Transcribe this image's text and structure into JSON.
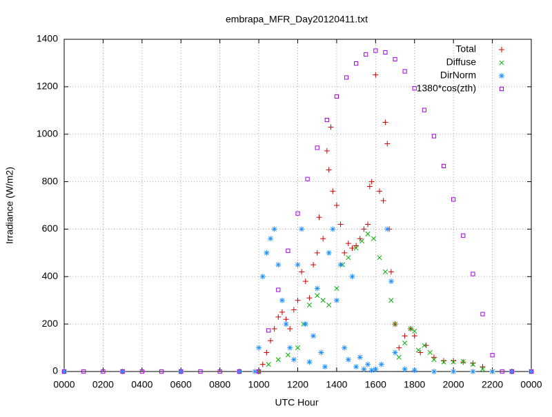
{
  "chart_data": {
    "type": "scatter",
    "title": "embrapa_MFR_Day20120411.txt",
    "x_label": "UTC Hour",
    "y_label": "Irradiance (W/m2)",
    "xlim": [
      0,
      24
    ],
    "ylim": [
      0,
      1400
    ],
    "xticks": [
      {
        "value": 0,
        "label": "0000"
      },
      {
        "value": 2,
        "label": "0200"
      },
      {
        "value": 4,
        "label": "0400"
      },
      {
        "value": 6,
        "label": "0600"
      },
      {
        "value": 8,
        "label": "0800"
      },
      {
        "value": 10,
        "label": "1000"
      },
      {
        "value": 12,
        "label": "1200"
      },
      {
        "value": 14,
        "label": "1400"
      },
      {
        "value": 16,
        "label": "1600"
      },
      {
        "value": 18,
        "label": "1800"
      },
      {
        "value": 20,
        "label": "2000"
      },
      {
        "value": 22,
        "label": "2200"
      },
      {
        "value": 24,
        "label": "0000"
      }
    ],
    "yticks": [
      0,
      200,
      400,
      600,
      800,
      1000,
      1200,
      1400
    ],
    "grid": true,
    "legend": "top right",
    "series": [
      {
        "name": "Total",
        "color": "#cc0000",
        "marker": "plus",
        "x": [
          0,
          3,
          6,
          9,
          10,
          10.2,
          10.4,
          10.6,
          10.8,
          11,
          11.2,
          11.4,
          11.6,
          11.8,
          12,
          12.2,
          12.4,
          12.6,
          12.8,
          13,
          13.1,
          13.3,
          13.5,
          13.6,
          13.7,
          13.8,
          14,
          14.2,
          14.4,
          14.6,
          14.8,
          15,
          15.2,
          15.4,
          15.6,
          15.7,
          15.8,
          16,
          16.2,
          16.4,
          16.5,
          16.6,
          16.7,
          16.8,
          17,
          17.2,
          17.5,
          17.8,
          18,
          18.3,
          18.6,
          19,
          19.5,
          20,
          20.5,
          21,
          21.5,
          22,
          23,
          24
        ],
        "values": [
          0,
          0,
          0,
          0,
          0,
          30,
          80,
          130,
          180,
          230,
          250,
          220,
          180,
          260,
          300,
          420,
          380,
          310,
          450,
          500,
          650,
          560,
          930,
          850,
          1030,
          760,
          700,
          620,
          500,
          540,
          520,
          530,
          560,
          600,
          620,
          780,
          800,
          1250,
          760,
          720,
          1050,
          960,
          600,
          420,
          200,
          100,
          150,
          180,
          150,
          80,
          110,
          60,
          45,
          45,
          40,
          35,
          20,
          0,
          0,
          0
        ]
      },
      {
        "name": "Diffuse",
        "color": "#00b000",
        "marker": "cross",
        "x": [
          0,
          3,
          6,
          9,
          10,
          10.5,
          11,
          11.5,
          12,
          12.3,
          12.6,
          13,
          13.3,
          13.6,
          14,
          14.3,
          14.6,
          15,
          15.3,
          15.6,
          15.9,
          16.2,
          16.5,
          16.8,
          17,
          17.2,
          17.5,
          17.8,
          18,
          18.2,
          18.5,
          18.8,
          19,
          19.5,
          20,
          20.5,
          21,
          21.5,
          22,
          23,
          24
        ],
        "values": [
          0,
          0,
          0,
          0,
          0,
          30,
          50,
          70,
          100,
          200,
          280,
          320,
          300,
          280,
          350,
          450,
          480,
          520,
          550,
          580,
          560,
          480,
          420,
          300,
          200,
          60,
          120,
          180,
          170,
          90,
          110,
          80,
          50,
          40,
          40,
          42,
          30,
          10,
          0,
          0,
          0
        ]
      },
      {
        "name": "DirNorm",
        "color": "#1e8fff",
        "marker": "star",
        "x": [
          0,
          3,
          6,
          9,
          9.8,
          10,
          10.2,
          10.4,
          10.6,
          10.8,
          11,
          11.2,
          11.4,
          11.6,
          11.8,
          12,
          12.2,
          12.4,
          12.6,
          12.8,
          13,
          13.2,
          13.4,
          13.6,
          13.8,
          14,
          14.2,
          14.4,
          14.6,
          14.8,
          15,
          15.2,
          15.4,
          15.6,
          15.8,
          16,
          16.3,
          16.6,
          16.8,
          17,
          17.5,
          18,
          19,
          20,
          21,
          22,
          23,
          24
        ],
        "values": [
          0,
          0,
          0,
          0,
          0,
          100,
          400,
          500,
          560,
          600,
          450,
          300,
          200,
          100,
          50,
          450,
          600,
          200,
          40,
          150,
          350,
          80,
          20,
          500,
          600,
          300,
          450,
          100,
          50,
          400,
          20,
          60,
          10,
          30,
          5,
          10,
          30,
          600,
          380,
          80,
          10,
          5,
          0,
          0,
          0,
          0,
          0,
          0
        ]
      },
      {
        "name": "1380*cos(zth)",
        "color": "#a000e0",
        "marker": "square",
        "x": [
          0,
          1,
          2,
          3,
          4,
          5,
          6,
          7,
          8,
          9,
          10,
          10.5,
          11,
          11.5,
          12,
          12.5,
          13,
          13.5,
          14,
          14.5,
          15,
          15.5,
          16,
          16.5,
          17,
          17.5,
          18,
          18.5,
          19,
          19.5,
          20,
          20.5,
          21,
          21.5,
          22,
          22.5,
          23,
          24
        ],
        "values": [
          0,
          0,
          0,
          0,
          0,
          0,
          0,
          0,
          0,
          0,
          0,
          173,
          344,
          509,
          666,
          811,
          943,
          1060,
          1159,
          1239,
          1298,
          1336,
          1352,
          1345,
          1316,
          1265,
          1193,
          1102,
          992,
          866,
          725,
          573,
          411,
          242,
          69,
          0,
          0,
          0
        ]
      }
    ]
  }
}
